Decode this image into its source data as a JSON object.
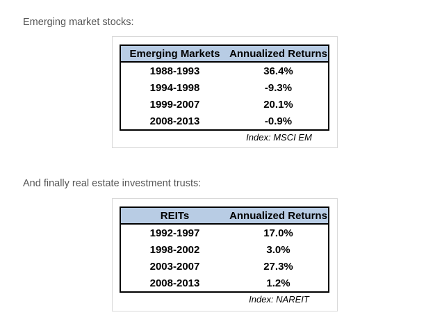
{
  "paragraphs": {
    "emerging_intro": "Emerging market stocks:",
    "reits_intro": "And finally real estate investment trusts:"
  },
  "tables": [
    {
      "headers": [
        "Emerging Markets",
        "Annualized Returns"
      ],
      "rows": [
        [
          "1988-1993",
          "36.4%"
        ],
        [
          "1994-1998",
          "-9.3%"
        ],
        [
          "1999-2007",
          "20.1%"
        ],
        [
          "2008-2013",
          "-0.9%"
        ]
      ],
      "footnote": "Index: MSCI EM"
    },
    {
      "headers": [
        "REITs",
        "Annualized Returns"
      ],
      "rows": [
        [
          "1992-1997",
          "17.0%"
        ],
        [
          "1998-2002",
          "3.0%"
        ],
        [
          "2003-2007",
          "27.3%"
        ],
        [
          "2008-2013",
          "1.2%"
        ]
      ],
      "footnote": "Index: NAREIT"
    }
  ],
  "colors": {
    "header_bg": "#b8cce4",
    "table_border": "#000000",
    "frame_border": "#d9d9d9",
    "body_text": "#555555",
    "table_text": "#000000"
  }
}
